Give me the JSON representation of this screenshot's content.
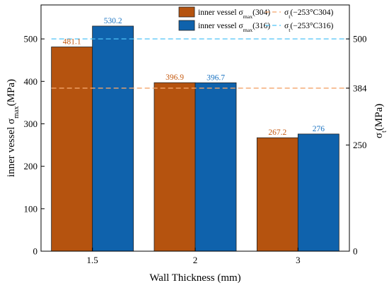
{
  "chart_data": {
    "type": "bar",
    "categories": [
      "1.5",
      "2",
      "3"
    ],
    "xlabel": "Wall Thickness (mm)",
    "ylabel_left": {
      "main": "inner vessel σ",
      "sub": "max",
      "tail": "(MPa)"
    },
    "ylabel_right": {
      "main": "σ",
      "sub": "t",
      "tail": "(MPa)"
    },
    "ylim_left": [
      0,
      580
    ],
    "ylim_right": [
      0,
      580
    ],
    "left_ticks": [
      0,
      100,
      200,
      300,
      400,
      500
    ],
    "right_ticks": [
      0,
      250,
      384,
      500
    ],
    "series": [
      {
        "legend": {
          "main": "inner vessel σ",
          "sub": "max",
          "tail": "(304)"
        },
        "values": [
          481.1,
          396.9,
          267.2
        ],
        "value_labels": [
          "481.1",
          "396.9",
          "267.2"
        ],
        "color": "#b5530f",
        "label_color": "#c55a11"
      },
      {
        "legend": {
          "main": "inner vessel σ",
          "sub": "max",
          "tail": "(316)"
        },
        "values": [
          530.2,
          396.7,
          276
        ],
        "value_labels": [
          "530.2",
          "396.7",
          "276"
        ],
        "color": "#0f62ac",
        "label_color": "#1a73c2"
      }
    ],
    "reference_lines": [
      {
        "legend": {
          "main": "σ",
          "sub": "t",
          "tail": "(−253°C304)"
        },
        "value": 384,
        "color": "#f4a46a",
        "dash": "dashed"
      },
      {
        "legend": {
          "main": "σ",
          "sub": "t",
          "tail": "(−253°C316)"
        },
        "value": 500,
        "color": "#4fc3f7",
        "dash": "dashed"
      }
    ],
    "legend_position": "top-right",
    "grid": false
  }
}
